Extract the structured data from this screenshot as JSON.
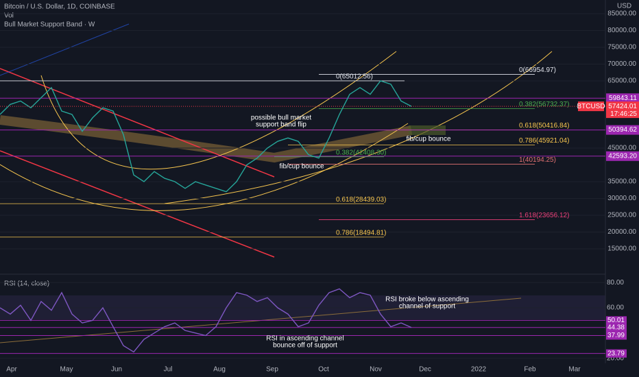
{
  "header": {
    "title": "Bitcoin / U.S. Dollar, 1D, COINBASE",
    "vol": "Vol",
    "indicator": "Bull Market Support Band · W"
  },
  "chart_data": {
    "type": "line",
    "currency": "USD",
    "series": [
      {
        "name": "BTCUSD",
        "color": "#26a69a",
        "values": [
          55000,
          58000,
          59000,
          57000,
          60000,
          63000,
          56000,
          55000,
          50000,
          54000,
          57000,
          56000,
          49000,
          37000,
          35000,
          38000,
          36000,
          35000,
          33000,
          35000,
          34000,
          33000,
          32000,
          35000,
          40000,
          42000,
          45000,
          47000,
          48000,
          47000,
          43000,
          42000,
          48000,
          55000,
          61000,
          63000,
          61000,
          65000,
          64000,
          59000,
          57424.01
        ]
      }
    ],
    "ylim": [
      8470,
      89080
    ],
    "yticks": [
      {
        "value": 85000,
        "label": "85000.00"
      },
      {
        "value": 80000,
        "label": "80000.00"
      },
      {
        "value": 75000,
        "label": "75000.00"
      },
      {
        "value": 70000,
        "label": "70000.00"
      },
      {
        "value": 65000,
        "label": "65000.00"
      },
      {
        "value": 45000,
        "label": "45000.00"
      },
      {
        "value": 35000,
        "label": "35000.00"
      },
      {
        "value": 30000,
        "label": "30000.00"
      },
      {
        "value": 25000,
        "label": "25000.00"
      },
      {
        "value": 20000,
        "label": "20000.00"
      },
      {
        "value": 15000,
        "label": "15000.00"
      }
    ],
    "time_axis": [
      "Apr",
      "May",
      "Jun",
      "Jul",
      "Aug",
      "Sep",
      "Oct",
      "Nov",
      "Dec",
      "2022",
      "Feb",
      "Mar"
    ],
    "symbol_tag": "BTCUSD",
    "last_price": {
      "value": 57424.01,
      "label": "57424.01"
    },
    "countdown": "17:46:25",
    "levels": [
      59843.11,
      50394.62,
      {
        "value": 42593.2,
        "label": "42593.20"
      }
    ],
    "fib": [
      {
        "label": "0(65012.56)",
        "value": 65012.56,
        "color": "#e0e3eb"
      },
      {
        "label": "0(66954.97)",
        "value": 66954.97,
        "color": "#e0e3eb"
      },
      {
        "label": "0.382(56732.37)",
        "value": 56732.37,
        "color": "#4caf50"
      },
      {
        "label": "0.618(50416.84)",
        "value": 50416.84,
        "color": "#f9c74f"
      },
      {
        "label": "0.786(45921.04)",
        "value": 45921.04,
        "color": "#f9c74f"
      },
      {
        "label": "1(40194.25)",
        "value": 40194.25,
        "color": "#e57373"
      },
      {
        "label": "0.382(42408.30)",
        "value": 42408.3,
        "color": "#4caf50"
      },
      {
        "label": "0.618(28439.03)",
        "value": 28439.03,
        "color": "#f9c74f"
      },
      {
        "label": "1.618(23656.12)",
        "value": 23656.12,
        "color": "#ec407a"
      },
      {
        "label": "0.786(18494.81)",
        "value": 18494.81,
        "color": "#f9c74f"
      }
    ],
    "annotations": [
      "possible bull market",
      "support band flip",
      "fib/cup bounce",
      "fib/cup bounce"
    ]
  },
  "rsi": {
    "title": "RSI (14, close)",
    "color": "#7e57c2",
    "values": [
      60,
      55,
      62,
      50,
      65,
      58,
      72,
      55,
      48,
      50,
      60,
      45,
      30,
      25,
      35,
      40,
      45,
      48,
      42,
      40,
      38,
      45,
      60,
      72,
      70,
      65,
      68,
      60,
      55,
      45,
      48,
      62,
      72,
      75,
      68,
      72,
      70,
      55,
      45,
      48,
      44.38
    ],
    "ylim": [
      16,
      85
    ],
    "yticks": [
      {
        "value": 80,
        "label": "80.00"
      },
      {
        "value": 60,
        "label": "60.00"
      },
      {
        "value": 20,
        "label": "20.00"
      }
    ],
    "levels": [
      50.01,
      44.38,
      37.99,
      23.79
    ],
    "annotations": [
      "RSI broke below ascending",
      "channel of support",
      "RSI in ascending channel",
      "bounce off of support"
    ]
  }
}
